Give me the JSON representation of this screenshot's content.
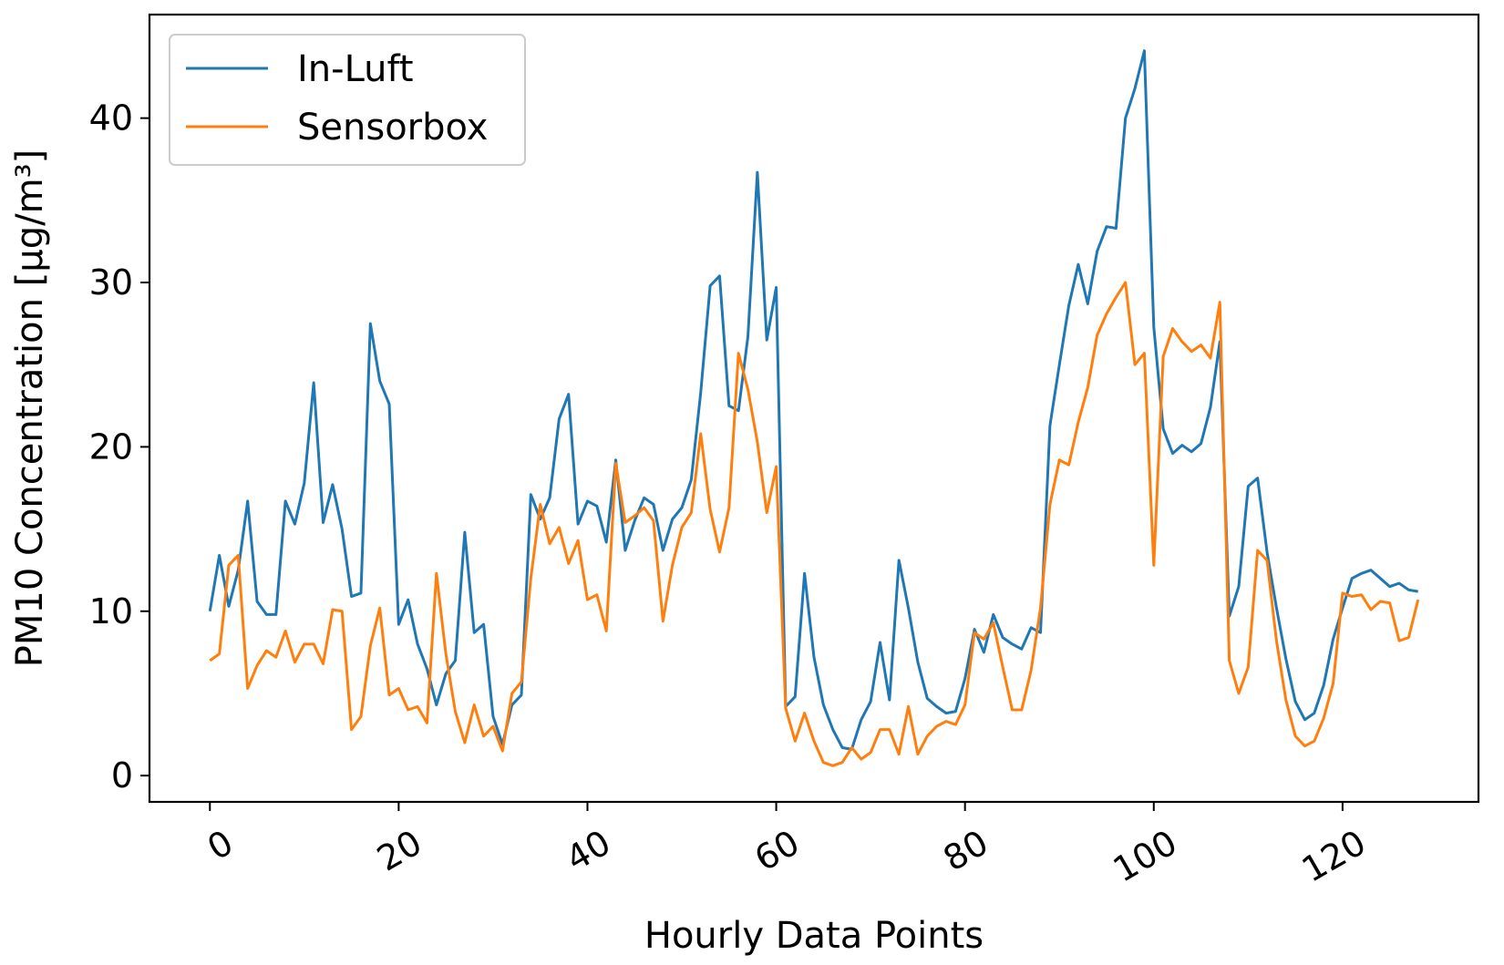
{
  "chart_data": {
    "type": "line",
    "xlabel": "Hourly Data Points",
    "ylabel": "PM10 Concentration [µg/m³]",
    "xlim": [
      -6.4,
      134.4
    ],
    "ylim": [
      -1.6,
      46.3
    ],
    "xticks": [
      0,
      20,
      40,
      60,
      80,
      100,
      120
    ],
    "yticks": [
      0,
      10,
      20,
      30,
      40
    ],
    "grid": false,
    "legend_position": "top-left",
    "series": [
      {
        "name": "In-Luft",
        "color": "#1f77b4",
        "values": [
          10.0,
          13.4,
          10.3,
          12.5,
          16.7,
          10.6,
          9.8,
          9.8,
          16.7,
          15.3,
          17.8,
          23.9,
          15.4,
          17.7,
          15.0,
          10.9,
          11.1,
          27.5,
          24.0,
          22.6,
          9.2,
          10.7,
          8.0,
          6.5,
          4.3,
          6.2,
          7.0,
          14.8,
          8.7,
          9.2,
          3.6,
          1.9,
          4.3,
          4.9,
          17.1,
          15.6,
          16.9,
          21.7,
          23.2,
          15.3,
          16.7,
          16.4,
          14.2,
          19.2,
          13.7,
          15.5,
          16.9,
          16.5,
          13.7,
          15.6,
          16.3,
          18.0,
          23.3,
          29.8,
          30.4,
          22.5,
          22.2,
          26.7,
          36.7,
          26.5,
          29.7,
          4.2,
          4.8,
          12.3,
          7.2,
          4.3,
          2.8,
          1.7,
          1.6,
          3.4,
          4.5,
          8.1,
          4.6,
          13.1,
          10.2,
          6.9,
          4.7,
          4.2,
          3.8,
          3.9,
          5.9,
          8.9,
          7.5,
          9.8,
          8.4,
          8.0,
          7.7,
          9.0,
          8.7,
          21.3,
          25.0,
          28.6,
          31.1,
          28.7,
          31.9,
          33.4,
          33.3,
          40.0,
          41.8,
          44.1,
          27.3,
          21.1,
          19.6,
          20.1,
          19.7,
          20.2,
          22.4,
          26.4,
          9.7,
          11.5,
          17.6,
          18.1,
          13.6,
          10.2,
          7.1,
          4.5,
          3.4,
          3.8,
          5.5,
          8.3,
          10.2,
          12.0,
          12.3,
          12.5,
          12.0,
          11.5,
          11.7,
          11.3,
          11.2
        ]
      },
      {
        "name": "Sensorbox",
        "color": "#ff7f0e",
        "values": [
          7.0,
          7.4,
          12.8,
          13.4,
          5.3,
          6.7,
          7.6,
          7.2,
          8.8,
          6.9,
          8.0,
          8.0,
          6.8,
          10.1,
          10.0,
          2.8,
          3.6,
          7.9,
          10.2,
          4.9,
          5.3,
          4.0,
          4.2,
          3.2,
          12.3,
          7.4,
          3.9,
          2.0,
          4.3,
          2.4,
          3.0,
          1.5,
          5.0,
          5.7,
          12.0,
          16.5,
          14.1,
          15.1,
          12.9,
          14.3,
          10.7,
          11.0,
          8.8,
          19.0,
          15.4,
          15.8,
          16.3,
          15.5,
          9.4,
          12.8,
          15.1,
          16.0,
          20.8,
          16.2,
          13.6,
          16.3,
          25.7,
          23.5,
          20.3,
          16.0,
          18.8,
          4.1,
          2.1,
          3.8,
          2.1,
          0.8,
          0.6,
          0.8,
          1.7,
          1.0,
          1.4,
          2.8,
          2.8,
          1.3,
          4.2,
          1.3,
          2.4,
          3.0,
          3.3,
          3.1,
          4.3,
          8.7,
          8.3,
          9.3,
          6.6,
          4.0,
          4.0,
          6.4,
          10.2,
          16.5,
          19.2,
          18.9,
          21.5,
          23.6,
          26.8,
          28.1,
          29.1,
          30.0,
          25.0,
          25.7,
          12.8,
          25.5,
          27.2,
          26.4,
          25.8,
          26.2,
          25.4,
          28.8,
          7.0,
          5.0,
          6.6,
          13.7,
          13.1,
          8.2,
          4.6,
          2.4,
          1.8,
          2.1,
          3.5,
          5.6,
          11.1,
          10.9,
          11.0,
          10.1,
          10.6,
          10.5,
          8.2,
          8.4,
          10.7
        ]
      }
    ]
  }
}
